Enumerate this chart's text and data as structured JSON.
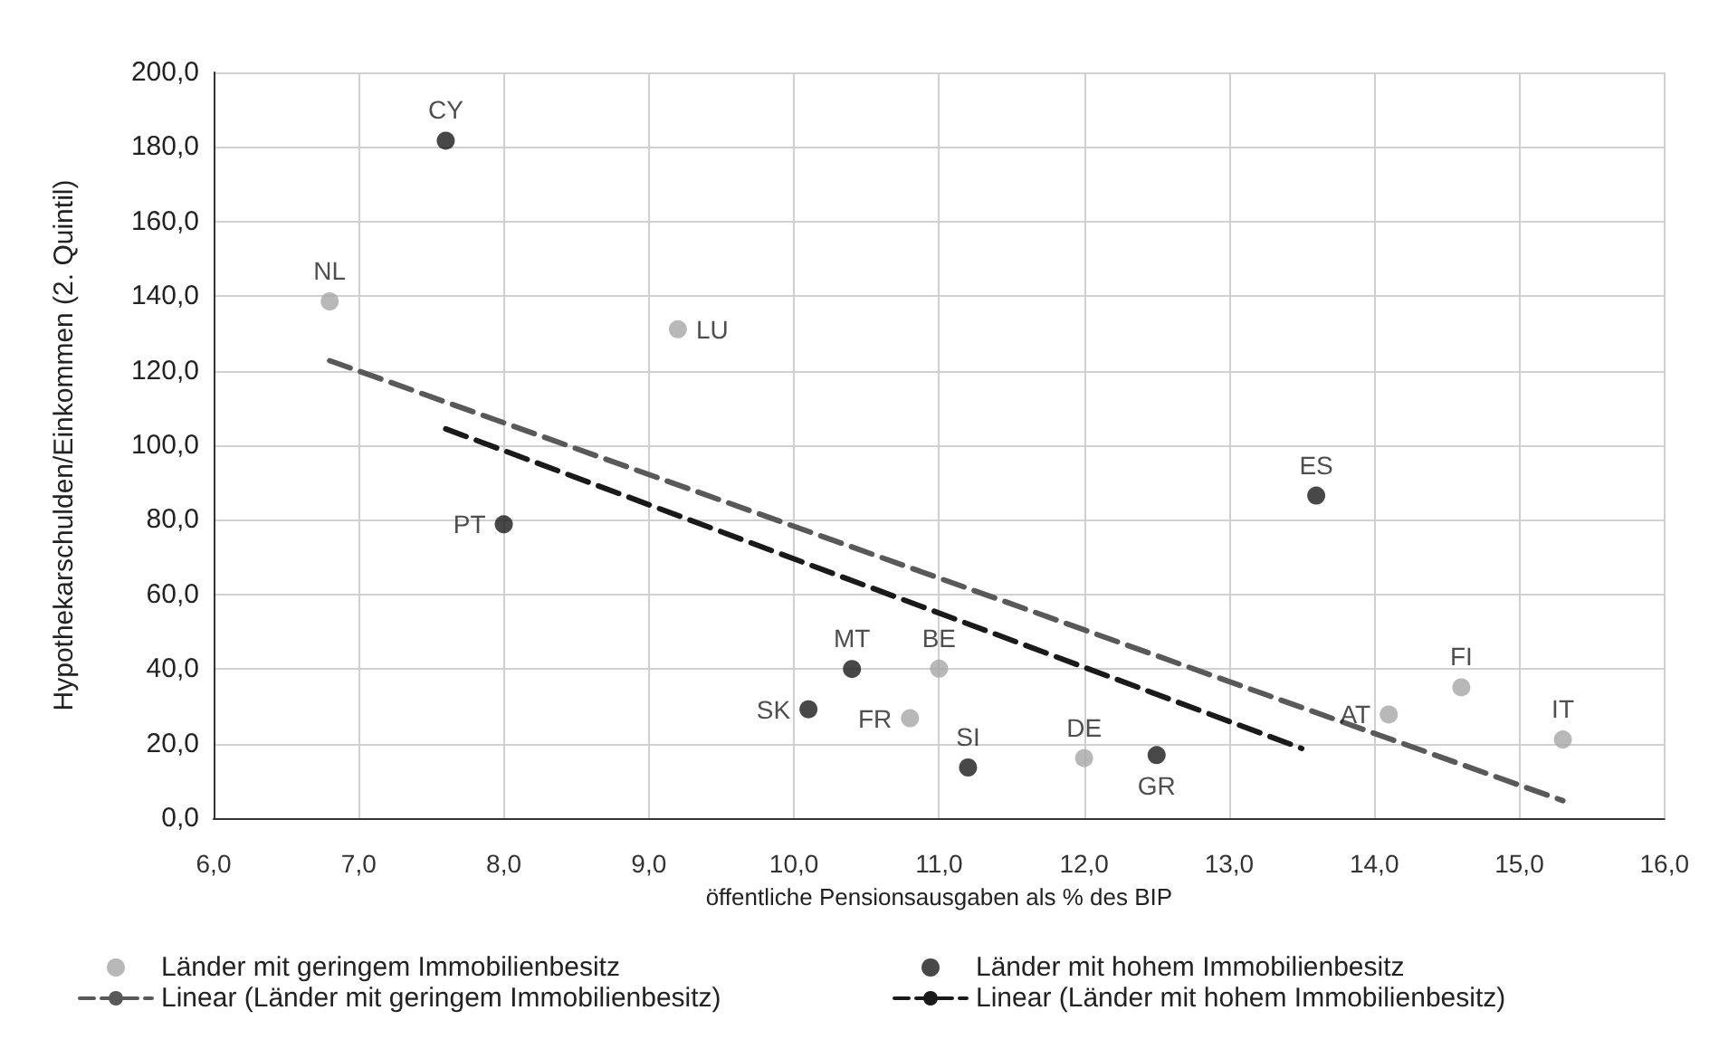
{
  "chart_data": {
    "type": "scatter",
    "xlabel": "öffentliche Pensionsausgaben als % des BIP",
    "ylabel": "Hypothekarschulden/Einkommen (2. Quintil)",
    "xlim": [
      6,
      16
    ],
    "ylim": [
      0,
      200
    ],
    "xticks": [
      {
        "value": 6,
        "label": "6,0"
      },
      {
        "value": 7,
        "label": "7,0"
      },
      {
        "value": 8,
        "label": "8,0"
      },
      {
        "value": 9,
        "label": "9,0"
      },
      {
        "value": 10,
        "label": "10,0"
      },
      {
        "value": 11,
        "label": "11,0"
      },
      {
        "value": 12,
        "label": "12,0"
      },
      {
        "value": 13,
        "label": "13,0"
      },
      {
        "value": 14,
        "label": "14,0"
      },
      {
        "value": 15,
        "label": "15,0"
      },
      {
        "value": 16,
        "label": "16,0"
      }
    ],
    "yticks": [
      {
        "value": 0,
        "label": "0,0"
      },
      {
        "value": 20,
        "label": "20,0"
      },
      {
        "value": 40,
        "label": "40,0"
      },
      {
        "value": 60,
        "label": "60,0"
      },
      {
        "value": 80,
        "label": "80,0"
      },
      {
        "value": 100,
        "label": "100,0"
      },
      {
        "value": 120,
        "label": "120,0"
      },
      {
        "value": 140,
        "label": "140,0"
      },
      {
        "value": 160,
        "label": "160,0"
      },
      {
        "value": 180,
        "label": "180,0"
      },
      {
        "value": 200,
        "label": "200,0"
      }
    ],
    "grid": true,
    "legend": "bottom",
    "marker": "circle",
    "series": [
      {
        "name": "Länder mit geringem Immobilienbesitz",
        "color": "#a6a6a6",
        "x": [
          6.8,
          9.2,
          11.0,
          10.8,
          12.0,
          14.1,
          14.6,
          15.3
        ],
        "values": [
          138.6,
          131.1,
          40.1,
          26.8,
          16.1,
          27.8,
          35.1,
          21.1
        ],
        "value_labels": [
          "NL",
          "LU",
          "BE",
          "FR",
          "DE",
          "AT",
          "FI",
          "IT"
        ]
      },
      {
        "name": "Länder mit hohem Immobilienbesitz",
        "color": "#1a1a1a",
        "x": [
          7.6,
          8.0,
          13.6,
          10.4,
          10.1,
          11.2,
          12.5
        ],
        "values": [
          181.7,
          78.8,
          86.5,
          40.0,
          29.2,
          13.6,
          16.9
        ],
        "value_labels": [
          "CY",
          "PT",
          "ES",
          "MT",
          "SK",
          "SI",
          "GR"
        ]
      },
      {
        "name": "Linear (Länder mit geringem Immobilienbesitz)",
        "type": "line",
        "color": "#595959",
        "line_style": "dashed",
        "marker": "none",
        "x": [
          6.8,
          15.3
        ],
        "values": [
          122.7,
          4.7
        ]
      },
      {
        "name": "Linear (Länder mit hohem Immobilienbesitz)",
        "type": "line",
        "color": "#1a1a1a",
        "line_style": "dashed",
        "marker": "none",
        "x": [
          7.6,
          13.5
        ],
        "values": [
          104.4,
          18.7
        ]
      }
    ]
  }
}
